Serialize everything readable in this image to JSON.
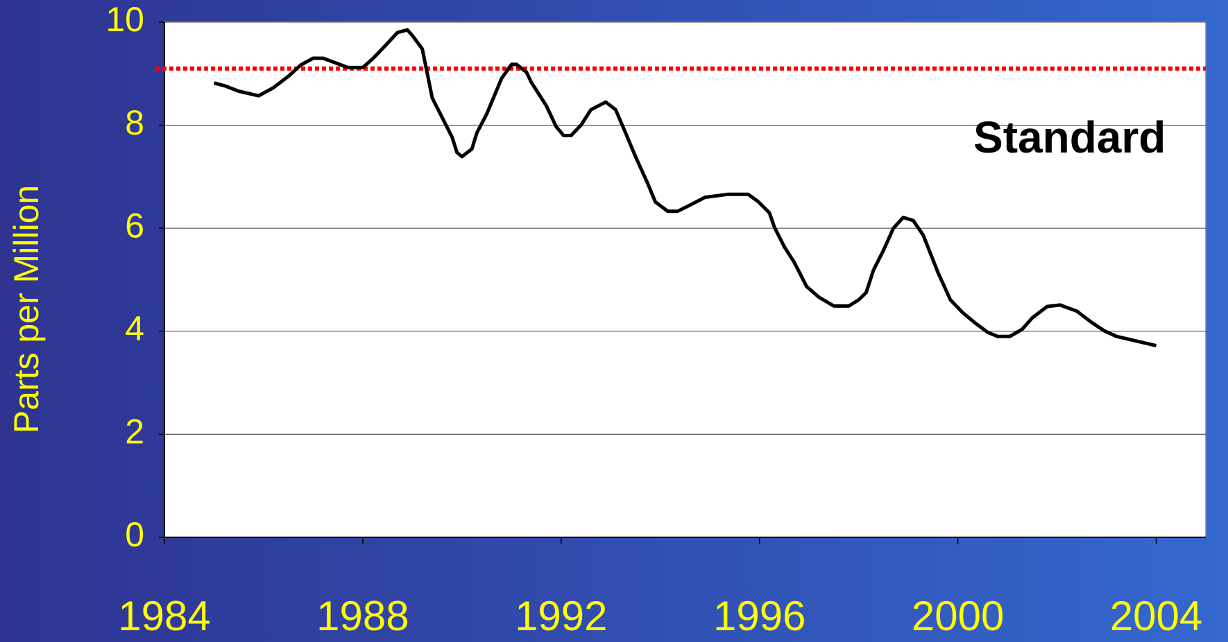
{
  "chart_data": {
    "type": "line",
    "ylabel": "Parts per Million",
    "x": [
      1985.0,
      1985.23,
      1985.5,
      1985.9,
      1986.2,
      1986.5,
      1986.75,
      1987.0,
      1987.2,
      1987.7,
      1988.0,
      1988.2,
      1988.46,
      1988.7,
      1988.9,
      1989.0,
      1989.2,
      1989.4,
      1989.6,
      1989.8,
      1989.9,
      1990.0,
      1990.2,
      1990.3,
      1990.5,
      1990.8,
      1991.0,
      1991.1,
      1991.3,
      1991.4,
      1991.7,
      1991.9,
      1992.05,
      1992.2,
      1992.4,
      1992.6,
      1992.9,
      1993.1,
      1993.3,
      1993.5,
      1993.75,
      1993.9,
      1994.15,
      1994.35,
      1994.6,
      1994.9,
      1995.37,
      1995.77,
      1995.97,
      1996.2,
      1996.3,
      1996.5,
      1996.7,
      1996.95,
      1997.2,
      1997.5,
      1997.8,
      1998.0,
      1998.15,
      1998.3,
      1998.5,
      1998.7,
      1998.9,
      1999.1,
      1999.3,
      1999.6,
      1999.85,
      2000.1,
      2000.35,
      2000.6,
      2000.8,
      2001.05,
      2001.3,
      2001.5,
      2001.8,
      2002.06,
      2002.4,
      2002.7,
      2002.95,
      2003.2,
      2004.0
    ],
    "values": [
      8.82,
      8.76,
      8.66,
      8.57,
      8.73,
      8.95,
      9.17,
      9.3,
      9.3,
      9.12,
      9.12,
      9.29,
      9.55,
      9.8,
      9.85,
      9.74,
      9.48,
      8.53,
      8.15,
      7.77,
      7.47,
      7.39,
      7.54,
      7.85,
      8.22,
      8.91,
      9.18,
      9.18,
      9.03,
      8.83,
      8.38,
      7.97,
      7.8,
      7.8,
      8.0,
      8.3,
      8.45,
      8.3,
      7.85,
      7.39,
      6.86,
      6.51,
      6.33,
      6.33,
      6.45,
      6.6,
      6.66,
      6.66,
      6.52,
      6.3,
      6.02,
      5.64,
      5.34,
      4.87,
      4.66,
      4.49,
      4.49,
      4.61,
      4.75,
      5.19,
      5.57,
      6.0,
      6.21,
      6.15,
      5.87,
      5.14,
      4.61,
      4.36,
      4.16,
      3.98,
      3.9,
      3.9,
      4.04,
      4.26,
      4.48,
      4.51,
      4.39,
      4.17,
      4.01,
      3.9,
      3.72
    ],
    "color": "#000000",
    "reference_line": {
      "value": 9.1,
      "label": "Standard",
      "color": "#ff0000"
    },
    "xlim": [
      1984,
      2005
    ],
    "xticks": [
      1984,
      1988,
      1992,
      1996,
      2000,
      2004
    ],
    "ylim": [
      0,
      10
    ],
    "yticks": [
      0,
      2,
      4,
      6,
      8,
      10
    ],
    "grid": true
  }
}
